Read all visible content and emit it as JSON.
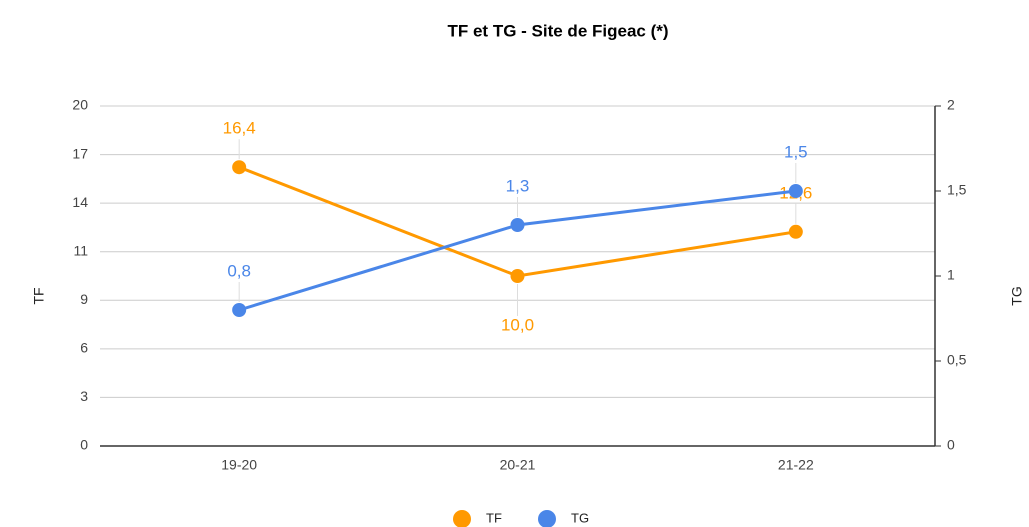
{
  "chart_data": {
    "type": "line",
    "title": "TF et TG -  Site de Figeac (*)",
    "ylabel": "TF",
    "y2label": "TG",
    "categories": [
      "19-20",
      "20-21",
      "21-22"
    ],
    "series": [
      {
        "name": "TF",
        "color": "#ff9900",
        "values": [
          16.4,
          10.0,
          12.6
        ],
        "value_labels": [
          "16,4",
          "10,0",
          "12,6"
        ]
      },
      {
        "name": "TG",
        "color": "#4a86e8",
        "axis": "y2",
        "values": [
          0.8,
          1.3,
          1.5
        ],
        "value_labels": [
          "0,8",
          "1,3",
          "1,5"
        ]
      }
    ],
    "ylim": [
      0,
      20
    ],
    "yticks": [
      0,
      {
        "value": 2.857,
        "label": "3"
      },
      {
        "value": 5.714,
        "label": "6"
      },
      {
        "value": 8.571,
        "label": "9"
      },
      {
        "value": 11.429,
        "label": "11"
      },
      {
        "value": 14.286,
        "label": "14"
      },
      {
        "value": 17.143,
        "label": "17"
      },
      20
    ],
    "y2lim": [
      0,
      2
    ],
    "y2ticks": [
      0,
      {
        "value": 0.5,
        "label": "0,5"
      },
      1,
      {
        "value": 1.5,
        "label": "1,5"
      },
      2
    ],
    "grid": true,
    "legend": "bottom"
  }
}
